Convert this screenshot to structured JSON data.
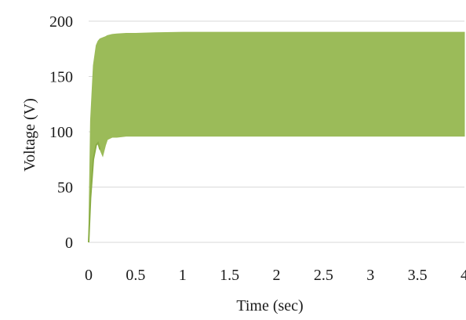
{
  "chart_data": {
    "type": "area",
    "xlabel": "Time (sec)",
    "ylabel": "Voltage (V)",
    "xlim": [
      0,
      4
    ],
    "ylim": [
      0,
      200
    ],
    "x_ticks": [
      "0",
      "0.5",
      "1",
      "1.5",
      "2",
      "2.5",
      "3",
      "3.5",
      "4"
    ],
    "y_ticks": [
      "0",
      "50",
      "100",
      "150",
      "200"
    ],
    "grid": "horizontal",
    "legend": "none",
    "fill_color": "#9bbb59",
    "series": [
      {
        "x": [
          0,
          0.02,
          0.05,
          0.08,
          0.1,
          0.12,
          0.15,
          0.18,
          0.2,
          0.25,
          0.3,
          0.4,
          0.5,
          0.7,
          1.0,
          1.5,
          2.0,
          2.5,
          3.0,
          3.5,
          4.0
        ],
        "upper": [
          0,
          110,
          160,
          178,
          182,
          184,
          185,
          186,
          187,
          188,
          188.5,
          189,
          189,
          189.5,
          190,
          190,
          190,
          190,
          190,
          190,
          190
        ],
        "lower": [
          0,
          40,
          75,
          88,
          90,
          84,
          78,
          88,
          93,
          95,
          95,
          96,
          96,
          96,
          96,
          96,
          96,
          96,
          96,
          96,
          96
        ]
      }
    ]
  }
}
